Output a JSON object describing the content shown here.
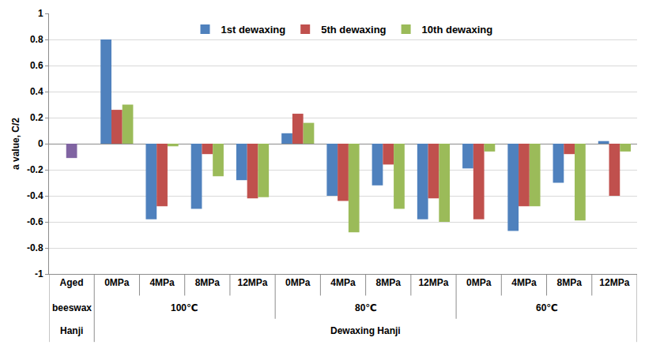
{
  "chart_data": {
    "type": "bar",
    "y_label": "a value, C/2",
    "categories": [
      [
        "Aged",
        "beeswax",
        "Hanji"
      ],
      [
        "0MPa",
        "100℃",
        "Dewaxing Hanji"
      ],
      [
        "4MPa",
        "100℃",
        "Dewaxing Hanji"
      ],
      [
        "8MPa",
        "100℃",
        "Dewaxing Hanji"
      ],
      [
        "12MPa",
        "100℃",
        "Dewaxing Hanji"
      ],
      [
        "0MPa",
        "80℃",
        "Dewaxing Hanji"
      ],
      [
        "4MPa",
        "80℃",
        "Dewaxing Hanji"
      ],
      [
        "8MPa",
        "80℃",
        "Dewaxing Hanji"
      ],
      [
        "12MPa",
        "80℃",
        "Dewaxing Hanji"
      ],
      [
        "0MPa",
        "60℃",
        "Dewaxing Hanji"
      ],
      [
        "4MPa",
        "60℃",
        "Dewaxing Hanji"
      ],
      [
        "8MPa",
        "60℃",
        "Dewaxing Hanji"
      ],
      [
        "12MPa",
        "60℃",
        "Dewaxing Hanji"
      ]
    ],
    "series": [
      {
        "name": "1st dewaxing",
        "color": "#4f81bd",
        "values": [
          null,
          0.8,
          -0.58,
          -0.5,
          -0.28,
          0.08,
          -0.4,
          -0.32,
          -0.58,
          -0.19,
          -0.67,
          -0.3,
          0.02
        ]
      },
      {
        "name": "5th dewaxing",
        "color": "#c0504d",
        "values": [
          null,
          0.26,
          -0.48,
          -0.08,
          -0.42,
          0.23,
          -0.44,
          -0.16,
          -0.42,
          -0.58,
          -0.48,
          -0.08,
          -0.4
        ]
      },
      {
        "name": "10th dewaxing",
        "color": "#9bbb59",
        "values": [
          null,
          0.3,
          -0.02,
          -0.25,
          -0.41,
          0.16,
          -0.68,
          -0.5,
          -0.6,
          -0.06,
          -0.48,
          -0.59,
          -0.06
        ]
      },
      {
        "color": "#8064a2",
        "values": [
          -0.11,
          null,
          null,
          null,
          null,
          null,
          null,
          null,
          null,
          null,
          null,
          null,
          null
        ]
      }
    ],
    "ylim": [
      -1,
      1
    ],
    "yticks": [
      -1,
      -0.8,
      -0.6,
      -0.4,
      -0.2,
      0,
      0.2,
      0.4,
      0.6,
      0.8,
      1
    ],
    "grid": true,
    "legend": "top"
  }
}
